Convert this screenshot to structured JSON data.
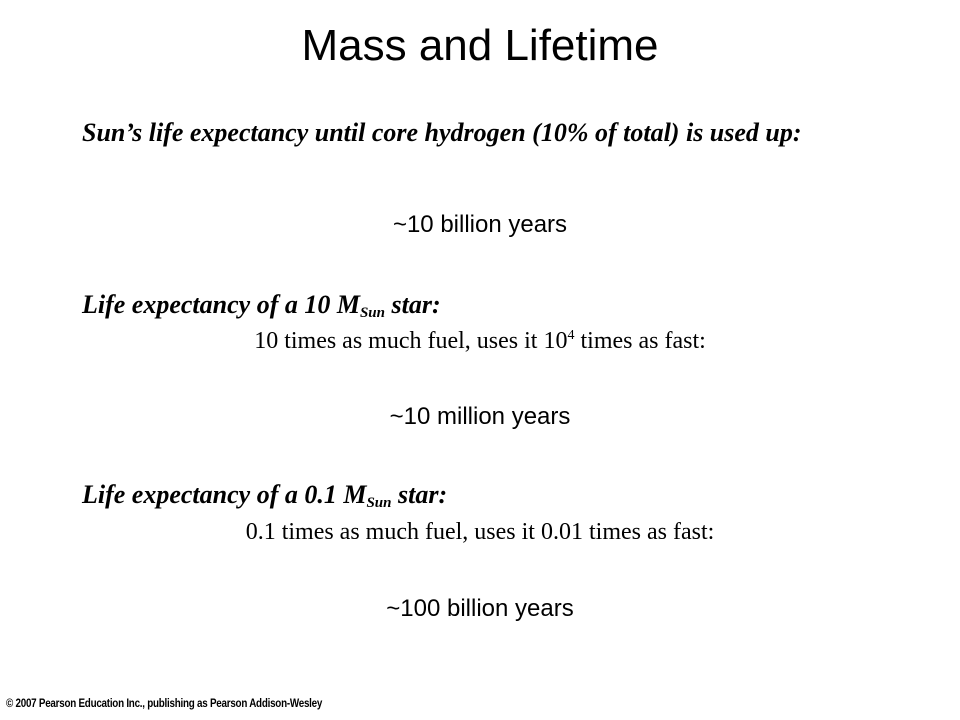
{
  "slide": {
    "title": "Mass and Lifetime",
    "sun": {
      "heading": "Sun’s life expectancy until core hydrogen (10% of total) is used up:",
      "result": "~10 billion years"
    },
    "star_10": {
      "heading_prefix": "Life expectancy of a 10 M",
      "heading_sub": "Sun",
      "heading_suffix": " star:",
      "detail_prefix": "10 times as much fuel, uses it 10",
      "detail_sup": "4",
      "detail_suffix": " times as fast:",
      "result": "~10 million years"
    },
    "star_01": {
      "heading_prefix": "Life expectancy of a 0.1 M",
      "heading_sub": "Sun",
      "heading_suffix": " star:",
      "detail": "0.1 times as much fuel, uses it 0.01 times as fast:",
      "result": "~100 billion years"
    },
    "copyright": "© 2007 Pearson Education Inc., publishing as Pearson Addison-Wesley"
  }
}
